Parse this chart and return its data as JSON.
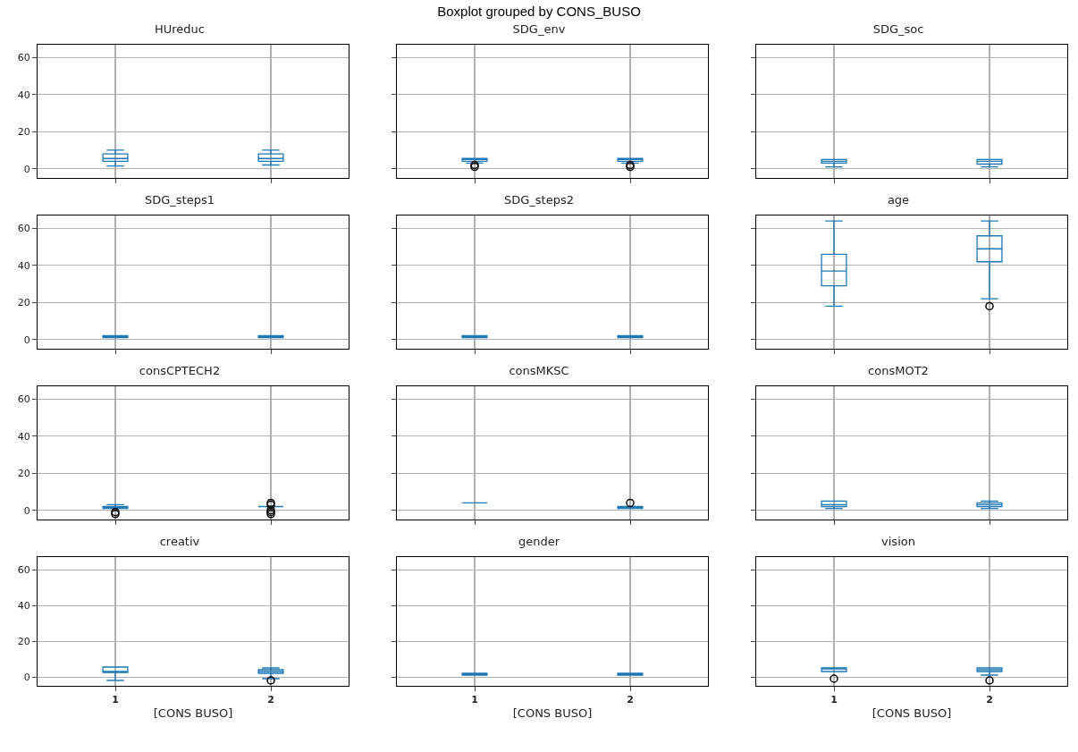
{
  "chart_data": [
    {
      "type": "box",
      "title": "HUreduc",
      "annotations": [
        "Boxplot grouped by CONS_BUSO"
      ],
      "categories": [
        "1",
        "2"
      ],
      "ylim": [
        -5,
        67
      ],
      "yticks": [
        0,
        20,
        40,
        60
      ],
      "grid": true,
      "tick_labels": "y",
      "series": [
        {
          "color": "#1f77b4",
          "boxes": [
            {
              "low": 1.5,
              "q1": 4,
              "median": 5.5,
              "q3": 8,
              "high": 10
            },
            {
              "low": 2,
              "q1": 4,
              "median": 5.5,
              "q3": 8,
              "high": 10
            }
          ]
        }
      ]
    },
    {
      "type": "box",
      "title": "SDG_env",
      "categories": [
        "1",
        "2"
      ],
      "ylim": [
        -5,
        67
      ],
      "yticks": [
        0,
        20,
        40,
        60
      ],
      "grid": true,
      "tick_labels": false,
      "series": [
        {
          "color": "#1f77b4",
          "boxes": [
            {
              "low": 3,
              "q1": 4,
              "median": 5,
              "q3": 5.5,
              "high": 5.5,
              "outliers": [
                1,
                2
              ]
            },
            {
              "low": 3,
              "q1": 4,
              "median": 5,
              "q3": 5.5,
              "high": 5.5,
              "outliers": [
                1,
                2
              ]
            }
          ]
        }
      ]
    },
    {
      "type": "box",
      "title": "SDG_soc",
      "categories": [
        "1",
        "2"
      ],
      "ylim": [
        -5,
        67
      ],
      "yticks": [
        0,
        20,
        40,
        60
      ],
      "grid": true,
      "tick_labels": false,
      "series": [
        {
          "color": "#1f77b4",
          "boxes": [
            {
              "low": 1,
              "q1": 3,
              "median": 4,
              "q3": 5,
              "high": 5
            },
            {
              "low": 1,
              "q1": 2.5,
              "median": 4,
              "q3": 5,
              "high": 5
            }
          ]
        }
      ]
    },
    {
      "type": "box",
      "title": "SDG_steps1",
      "categories": [
        "1",
        "2"
      ],
      "ylim": [
        -5,
        67
      ],
      "yticks": [
        0,
        20,
        40,
        60
      ],
      "grid": true,
      "tick_labels": "y",
      "series": [
        {
          "color": "#1f77b4",
          "boxes": [
            {
              "low": 1,
              "q1": 1,
              "median": 1.5,
              "q3": 2,
              "high": 2
            },
            {
              "low": 1,
              "q1": 1,
              "median": 1.5,
              "q3": 2,
              "high": 2
            }
          ]
        }
      ]
    },
    {
      "type": "box",
      "title": "SDG_steps2",
      "categories": [
        "1",
        "2"
      ],
      "ylim": [
        -5,
        67
      ],
      "yticks": [
        0,
        20,
        40,
        60
      ],
      "grid": true,
      "tick_labels": false,
      "series": [
        {
          "color": "#1f77b4",
          "boxes": [
            {
              "low": 1,
              "q1": 1,
              "median": 1.5,
              "q3": 2,
              "high": 2
            },
            {
              "low": 1,
              "q1": 1,
              "median": 1.5,
              "q3": 2,
              "high": 2
            }
          ]
        }
      ]
    },
    {
      "type": "box",
      "title": "age",
      "categories": [
        "1",
        "2"
      ],
      "ylim": [
        -5,
        67
      ],
      "yticks": [
        0,
        20,
        40,
        60
      ],
      "grid": true,
      "tick_labels": false,
      "series": [
        {
          "color": "#1f77b4",
          "boxes": [
            {
              "low": 18,
              "q1": 29,
              "median": 37,
              "q3": 46,
              "high": 64
            },
            {
              "low": 22,
              "q1": 42,
              "median": 49,
              "q3": 56,
              "high": 64,
              "outliers": [
                18
              ]
            }
          ]
        }
      ]
    },
    {
      "type": "box",
      "title": "consCPTECH2",
      "categories": [
        "1",
        "2"
      ],
      "ylim": [
        -5,
        67
      ],
      "yticks": [
        0,
        20,
        40,
        60
      ],
      "grid": true,
      "tick_labels": "y",
      "series": [
        {
          "color": "#1f77b4",
          "boxes": [
            {
              "low": 1,
              "q1": 1,
              "median": 2,
              "q3": 2,
              "high": 3,
              "outliers": [
                -1,
                -2
              ]
            },
            {
              "low": 2,
              "q1": 2,
              "median": 2,
              "q3": 2,
              "high": 2,
              "outliers": [
                4,
                3,
                0,
                -1,
                -2
              ]
            }
          ]
        }
      ]
    },
    {
      "type": "box",
      "title": "consMKSC",
      "categories": [
        "1",
        "2"
      ],
      "ylim": [
        -5,
        67
      ],
      "yticks": [
        0,
        20,
        40,
        60
      ],
      "grid": true,
      "tick_labels": false,
      "series": [
        {
          "color": "#1f77b4",
          "boxes": [
            {
              "low": 4,
              "q1": 4,
              "median": 4,
              "q3": 4,
              "high": 4
            },
            {
              "low": 1,
              "q1": 1,
              "median": 1.5,
              "q3": 2,
              "high": 2,
              "outliers": [
                4
              ]
            }
          ]
        }
      ]
    },
    {
      "type": "box",
      "title": "consMOT2",
      "categories": [
        "1",
        "2"
      ],
      "ylim": [
        -5,
        67
      ],
      "yticks": [
        0,
        20,
        40,
        60
      ],
      "grid": true,
      "tick_labels": false,
      "series": [
        {
          "color": "#1f77b4",
          "boxes": [
            {
              "low": 1,
              "q1": 2,
              "median": 3,
              "q3": 5,
              "high": 5
            },
            {
              "low": 1,
              "q1": 2,
              "median": 3,
              "q3": 4,
              "high": 5
            }
          ]
        }
      ]
    },
    {
      "type": "box",
      "title": "creativ",
      "xlabel": "[CONS BUSO]",
      "categories": [
        "1",
        "2"
      ],
      "ylim": [
        -5,
        67
      ],
      "yticks": [
        0,
        20,
        40,
        60
      ],
      "grid": true,
      "series": [
        {
          "color": "#1f77b4",
          "boxes": [
            {
              "low": -2,
              "q1": 2.5,
              "median": 3,
              "q3": 5.5,
              "high": 5.5
            },
            {
              "low": -1,
              "q1": 2,
              "median": 3,
              "q3": 4,
              "high": 5,
              "outliers": [
                -2
              ]
            }
          ]
        }
      ]
    },
    {
      "type": "box",
      "title": "gender",
      "xlabel": "[CONS BUSO]",
      "categories": [
        "1",
        "2"
      ],
      "ylim": [
        -5,
        67
      ],
      "yticks": [
        0,
        20,
        40,
        60
      ],
      "grid": true,
      "tick_labels": "x",
      "series": [
        {
          "color": "#1f77b4",
          "boxes": [
            {
              "low": 1,
              "q1": 1,
              "median": 2,
              "q3": 2,
              "high": 2
            },
            {
              "low": 1,
              "q1": 1,
              "median": 2,
              "q3": 2,
              "high": 2
            }
          ]
        }
      ]
    },
    {
      "type": "box",
      "title": "vision",
      "xlabel": "[CONS BUSO]",
      "categories": [
        "1",
        "2"
      ],
      "ylim": [
        -5,
        67
      ],
      "yticks": [
        0,
        20,
        40,
        60
      ],
      "grid": true,
      "tick_labels": "x",
      "series": [
        {
          "color": "#1f77b4",
          "boxes": [
            {
              "low": 3,
              "q1": 3,
              "median": 5,
              "q3": 5,
              "high": 5,
              "outliers": [
                -1
              ]
            },
            {
              "low": 1,
              "q1": 3,
              "median": 4,
              "q3": 5,
              "high": 5,
              "outliers": [
                -2
              ]
            }
          ]
        }
      ]
    }
  ]
}
